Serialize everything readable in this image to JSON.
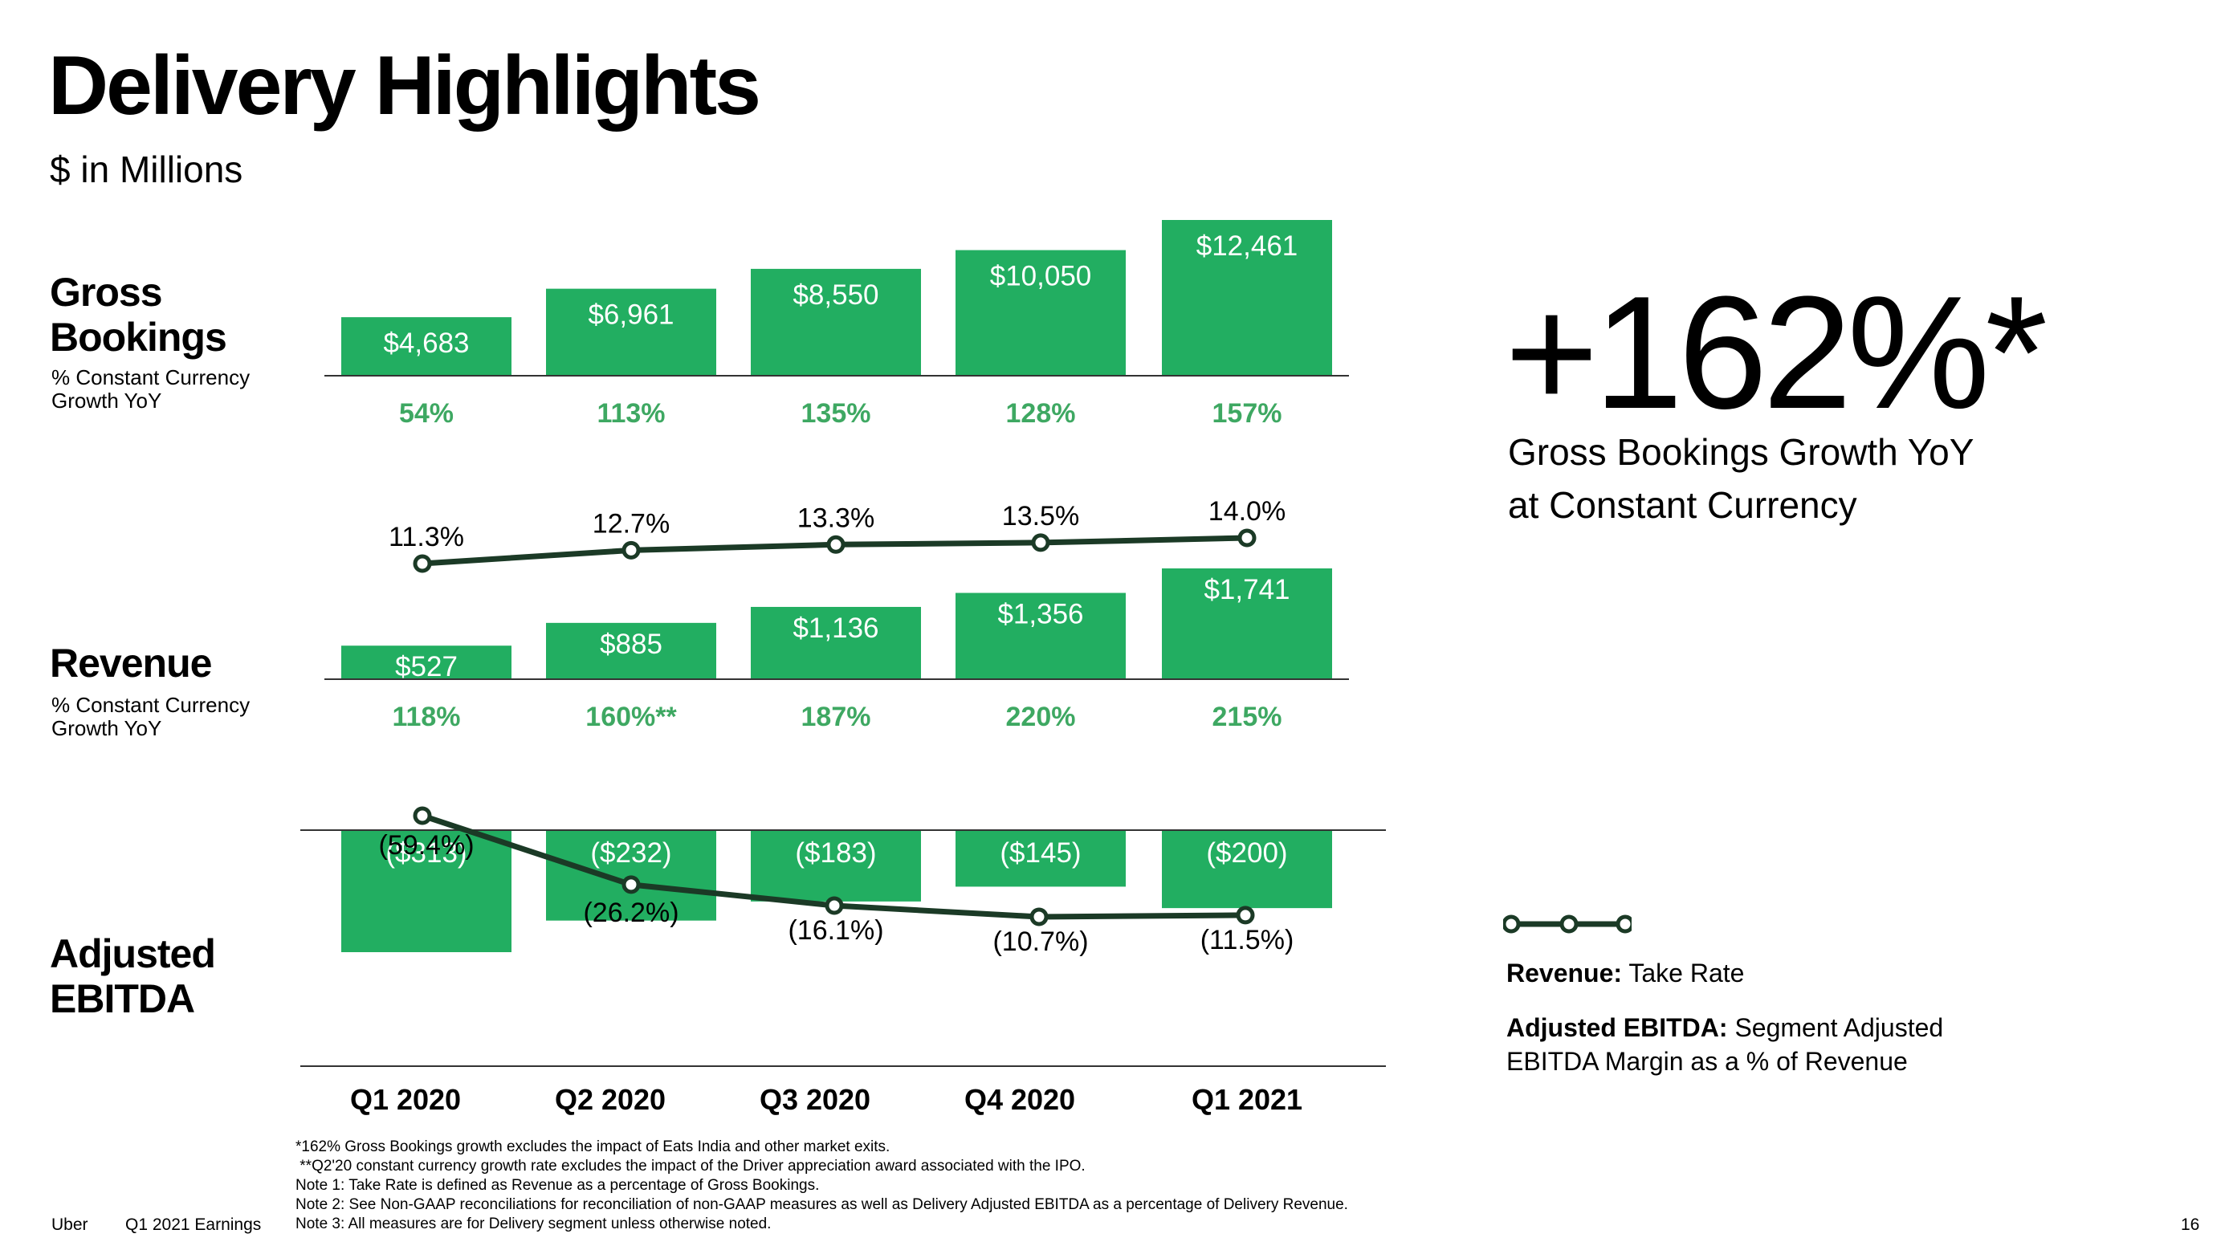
{
  "slide": {
    "title": "Delivery Highlights",
    "subtitle": "$ in Millions"
  },
  "rows": {
    "gross_bookings": {
      "title_line1": "Gross",
      "title_line2": "Bookings",
      "sub_line1": "% Constant Currency",
      "sub_line2": "Growth YoY"
    },
    "revenue": {
      "title_line1": "Revenue",
      "sub_line1": "% Constant Currency",
      "sub_line2": "Growth YoY"
    },
    "adj_ebitda": {
      "title_line1": "Adjusted",
      "title_line2": "EBITDA"
    }
  },
  "highlight": {
    "value": "+162%*",
    "caption_line1": "Gross Bookings Growth YoY",
    "caption_line2": "at Constant Currency"
  },
  "legend": {
    "revenue_label": "Revenue:",
    "revenue_desc": "Take Rate",
    "ebitda_label": "Adjusted EBITDA:",
    "ebitda_desc_line1": "Segment Adjusted",
    "ebitda_desc_line2": "EBITDA Margin as a % of Revenue"
  },
  "footnotes": [
    "*162% Gross Bookings growth excludes the impact of Eats India and other market exits.",
    " **Q2'20 constant currency growth rate excludes the impact of the Driver appreciation award associated with the IPO.",
    "Note 1: Take Rate is defined as Revenue as a percentage of Gross Bookings.",
    "Note 2: See Non-GAAP reconciliations for reconciliation of non-GAAP measures as well as Delivery Adjusted EBITDA as a percentage of Delivery Revenue.",
    "Note 3: All measures are for Delivery segment unless otherwise noted."
  ],
  "footer": {
    "brand": "Uber",
    "deck": "Q1 2021 Earnings",
    "page": "16"
  },
  "colors": {
    "bar": "#22AE61",
    "growth_text": "#3EA862",
    "line": "#1B3A26",
    "axis": "#333333"
  },
  "chart_data": [
    {
      "type": "bar",
      "title": "Gross Bookings",
      "categories": [
        "Q1 2020",
        "Q2 2020",
        "Q3 2020",
        "Q4 2020",
        "Q1 2021"
      ],
      "values": [
        4683,
        6961,
        8550,
        10050,
        12461
      ],
      "data_labels": [
        "$4,683",
        "$6,961",
        "$8,550",
        "$10,050",
        "$12,461"
      ],
      "growth_labels": [
        "54%",
        "113%",
        "135%",
        "128%",
        "157%"
      ],
      "growth_values": [
        54,
        113,
        135,
        128,
        157
      ],
      "ylim": [
        0,
        12461
      ]
    },
    {
      "type": "line",
      "title": "Take Rate",
      "categories": [
        "Q1 2020",
        "Q2 2020",
        "Q3 2020",
        "Q4 2020",
        "Q1 2021"
      ],
      "values": [
        11.3,
        12.7,
        13.3,
        13.5,
        14.0
      ],
      "data_labels": [
        "11.3%",
        "12.7%",
        "13.3%",
        "13.5%",
        "14.0%"
      ]
    },
    {
      "type": "bar",
      "title": "Revenue",
      "categories": [
        "Q1 2020",
        "Q2 2020",
        "Q3 2020",
        "Q4 2020",
        "Q1 2021"
      ],
      "values": [
        527,
        885,
        1136,
        1356,
        1741
      ],
      "data_labels": [
        "$527",
        "$885",
        "$1,136",
        "$1,356",
        "$1,741"
      ],
      "growth_labels": [
        "118%",
        "160%**",
        "187%",
        "220%",
        "215%"
      ],
      "growth_values": [
        118,
        160,
        187,
        220,
        215
      ],
      "ylim": [
        0,
        1741
      ]
    },
    {
      "type": "bar",
      "title": "Adjusted EBITDA",
      "categories": [
        "Q1 2020",
        "Q2 2020",
        "Q3 2020",
        "Q4 2020",
        "Q1 2021"
      ],
      "values": [
        -313,
        -232,
        -183,
        -145,
        -200
      ],
      "data_labels": [
        "($313)",
        "($232)",
        "($183)",
        "($145)",
        "($200)"
      ],
      "ylim": [
        -313,
        0
      ]
    },
    {
      "type": "line",
      "title": "Segment Adjusted EBITDA Margin as a % of Revenue",
      "categories": [
        "Q1 2020",
        "Q2 2020",
        "Q3 2020",
        "Q4 2020",
        "Q1 2021"
      ],
      "values": [
        -59.4,
        -26.2,
        -16.1,
        -10.7,
        -11.5
      ],
      "data_labels": [
        "(59.4%)",
        "(26.2%)",
        "(16.1%)",
        "(10.7%)",
        "(11.5%)"
      ]
    }
  ]
}
